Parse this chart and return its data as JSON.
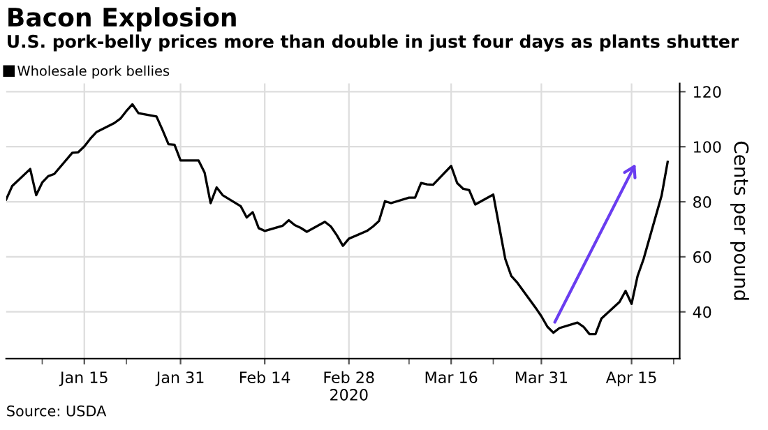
{
  "chart_data": {
    "type": "line",
    "title": "Bacon Explosion",
    "subtitle": "U.S. pork-belly prices more than double in just four days as plants shutter",
    "ylabel": "Cents per pound",
    "annotations": [
      "Source: USDA"
    ],
    "x": [
      "2020-01-02",
      "2020-01-03",
      "2020-01-06",
      "2020-01-07",
      "2020-01-08",
      "2020-01-09",
      "2020-01-10",
      "2020-01-13",
      "2020-01-14",
      "2020-01-15",
      "2020-01-16",
      "2020-01-17",
      "2020-01-20",
      "2020-01-21",
      "2020-01-22",
      "2020-01-23",
      "2020-01-24",
      "2020-01-27",
      "2020-01-28",
      "2020-01-29",
      "2020-01-30",
      "2020-01-31",
      "2020-02-03",
      "2020-02-04",
      "2020-02-05",
      "2020-02-06",
      "2020-02-07",
      "2020-02-10",
      "2020-02-11",
      "2020-02-12",
      "2020-02-13",
      "2020-02-14",
      "2020-02-17",
      "2020-02-18",
      "2020-02-19",
      "2020-02-20",
      "2020-02-21",
      "2020-02-24",
      "2020-02-25",
      "2020-02-26",
      "2020-02-27",
      "2020-02-28",
      "2020-03-02",
      "2020-03-03",
      "2020-03-04",
      "2020-03-05",
      "2020-03-06",
      "2020-03-09",
      "2020-03-10",
      "2020-03-11",
      "2020-03-12",
      "2020-03-13",
      "2020-03-16",
      "2020-03-17",
      "2020-03-18",
      "2020-03-19",
      "2020-03-20",
      "2020-03-23",
      "2020-03-24",
      "2020-03-25",
      "2020-03-26",
      "2020-03-27",
      "2020-03-30",
      "2020-03-31",
      "2020-04-01",
      "2020-04-02",
      "2020-04-03",
      "2020-04-06",
      "2020-04-07",
      "2020-04-08",
      "2020-04-09",
      "2020-04-10",
      "2020-04-13",
      "2020-04-14",
      "2020-04-15",
      "2020-04-16",
      "2020-04-17",
      "2020-04-20",
      "2020-04-21"
    ],
    "series": [
      {
        "name": "Wholesale pork bellies",
        "color": "#000000",
        "values": [
          80.8,
          85.7,
          91.9,
          82.4,
          87.0,
          89.3,
          90.1,
          97.8,
          98.0,
          100.1,
          102.9,
          105.3,
          108.6,
          110.2,
          113.0,
          115.4,
          112.2,
          111.0,
          106.1,
          100.9,
          100.7,
          95.0,
          95.0,
          90.6,
          79.5,
          85.2,
          82.4,
          78.4,
          74.3,
          76.2,
          70.4,
          69.4,
          71.3,
          73.3,
          71.5,
          70.5,
          69.1,
          72.7,
          71.0,
          67.8,
          64.0,
          66.6,
          69.4,
          71.0,
          73.0,
          80.2,
          79.5,
          81.5,
          81.5,
          86.8,
          86.3,
          86.2,
          93.0,
          86.8,
          84.7,
          84.2,
          79.0,
          82.6,
          70.9,
          59.2,
          53.0,
          50.6,
          41.6,
          38.4,
          34.6,
          32.4,
          34.1,
          36.1,
          34.6,
          31.9,
          31.9,
          37.6,
          43.6,
          47.6,
          42.9,
          53.0,
          59.2,
          82.3,
          94.5
        ]
      }
    ],
    "xlim": [
      "2020-01-02",
      "2020-04-23"
    ],
    "xticks": [
      {
        "value": "2020-01-08",
        "label": null
      },
      {
        "value": "2020-01-15",
        "label": "Jan 15"
      },
      {
        "value": "2020-01-22",
        "label": null
      },
      {
        "value": "2020-01-31",
        "label": "Jan 31"
      },
      {
        "value": "2020-02-14",
        "label": "Feb 14"
      },
      {
        "value": "2020-02-28",
        "label": "Feb 28\n2020"
      },
      {
        "value": "2020-03-09",
        "label": null
      },
      {
        "value": "2020-03-16",
        "label": "Mar 16"
      },
      {
        "value": "2020-03-23",
        "label": null
      },
      {
        "value": "2020-03-31",
        "label": "Mar 31"
      },
      {
        "value": "2020-04-15",
        "label": "Apr 15"
      },
      {
        "value": "2020-04-22",
        "label": null
      }
    ],
    "ylim": [
      23,
      123
    ],
    "yticks": [
      40,
      60,
      80,
      100,
      120
    ],
    "grid": true,
    "legend": "top left"
  }
}
